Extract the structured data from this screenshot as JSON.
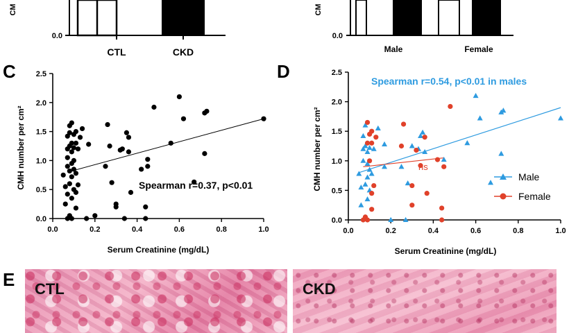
{
  "panel_letters": {
    "c": "C",
    "d": "D",
    "e": "E"
  },
  "top_left": {
    "ylabel_partial": "CM",
    "y_tick": "0.0",
    "categories": [
      "CTL",
      "CKD"
    ]
  },
  "top_right": {
    "ylabel_partial": "CM",
    "y_tick": "0.0",
    "categories": [
      "Male",
      "Female"
    ]
  },
  "panel_c": {
    "ylabel": "CMH number per cm²",
    "xlabel": "Serum Creatinine (mg/dL)",
    "annotation": "Spearman r=0.37, p<0.01"
  },
  "panel_d": {
    "ylabel": "CMH number per cm²",
    "xlabel": "Serum Creatinine (mg/dL)",
    "annotation": "Spearman r=0.54, p<0.01 in males",
    "ns_label": "ns",
    "legend": [
      {
        "label": "Male",
        "color": "#2E9BE0",
        "marker": "triangle"
      },
      {
        "label": "Female",
        "color": "#E0412A",
        "marker": "circle"
      }
    ]
  },
  "panel_e": {
    "labels": [
      "CTL",
      "CKD"
    ]
  },
  "chart_data": [
    {
      "type": "scatter",
      "xlabel": "Serum Creatinine (mg/dL)",
      "ylabel": "CMH number per cm²",
      "xlim": [
        0.0,
        1.0
      ],
      "ylim": [
        0.0,
        2.5
      ],
      "x_ticks": [
        "0.0",
        "0.2",
        "0.4",
        "0.6",
        "0.8",
        "1.0"
      ],
      "y_ticks": [
        "0.0",
        "0.5",
        "1.0",
        "1.5",
        "2.0",
        "2.5"
      ],
      "color": "#000000",
      "points": [
        [
          0.05,
          0.75
        ],
        [
          0.06,
          0.25
        ],
        [
          0.06,
          0.55
        ],
        [
          0.07,
          0.0
        ],
        [
          0.07,
          0.42
        ],
        [
          0.07,
          0.9
        ],
        [
          0.07,
          1.05
        ],
        [
          0.07,
          1.2
        ],
        [
          0.07,
          1.42
        ],
        [
          0.08,
          0.05
        ],
        [
          0.08,
          0.6
        ],
        [
          0.08,
          0.82
        ],
        [
          0.08,
          1.25
        ],
        [
          0.08,
          1.48
        ],
        [
          0.08,
          1.6
        ],
        [
          0.09,
          0.0
        ],
        [
          0.09,
          0.35
        ],
        [
          0.09,
          0.72
        ],
        [
          0.09,
          0.95
        ],
        [
          0.09,
          1.15
        ],
        [
          0.09,
          1.3
        ],
        [
          0.09,
          1.65
        ],
        [
          0.1,
          0.5
        ],
        [
          0.1,
          0.85
        ],
        [
          0.1,
          1.0
        ],
        [
          0.1,
          1.22
        ],
        [
          0.1,
          1.45
        ],
        [
          0.11,
          0.18
        ],
        [
          0.11,
          0.45
        ],
        [
          0.11,
          0.78
        ],
        [
          0.11,
          1.3
        ],
        [
          0.11,
          1.5
        ],
        [
          0.12,
          0.58
        ],
        [
          0.12,
          1.2
        ],
        [
          0.13,
          1.4
        ],
        [
          0.14,
          1.55
        ],
        [
          0.16,
          0.0
        ],
        [
          0.17,
          1.28
        ],
        [
          0.2,
          0.05
        ],
        [
          0.25,
          0.9
        ],
        [
          0.26,
          1.62
        ],
        [
          0.27,
          1.25
        ],
        [
          0.28,
          0.62
        ],
        [
          0.3,
          0.25
        ],
        [
          0.3,
          0.2
        ],
        [
          0.32,
          1.18
        ],
        [
          0.33,
          1.2
        ],
        [
          0.34,
          0.0
        ],
        [
          0.35,
          1.48
        ],
        [
          0.36,
          1.15
        ],
        [
          0.36,
          1.4
        ],
        [
          0.37,
          0.45
        ],
        [
          0.42,
          0.85
        ],
        [
          0.44,
          0.0
        ],
        [
          0.44,
          0.2
        ],
        [
          0.45,
          0.9
        ],
        [
          0.45,
          1.02
        ],
        [
          0.48,
          1.92
        ],
        [
          0.56,
          1.3
        ],
        [
          0.6,
          2.1
        ],
        [
          0.62,
          1.72
        ],
        [
          0.67,
          0.63
        ],
        [
          0.72,
          1.12
        ],
        [
          0.72,
          1.82
        ],
        [
          0.73,
          1.85
        ],
        [
          1.0,
          1.72
        ]
      ],
      "fit_line": [
        [
          0.07,
          0.8
        ],
        [
          1.0,
          1.72
        ]
      ],
      "annotation": "Spearman r=0.37, p<0.01"
    },
    {
      "type": "scatter",
      "xlabel": "Serum Creatinine (mg/dL)",
      "ylabel": "CMH number per cm²",
      "xlim": [
        0.0,
        1.0
      ],
      "ylim": [
        0.0,
        2.5
      ],
      "x_ticks": [
        "0.0",
        "0.2",
        "0.4",
        "0.6",
        "0.8",
        "1.0"
      ],
      "y_ticks": [
        "0.0",
        "0.5",
        "1.0",
        "1.5",
        "2.0",
        "2.5"
      ],
      "legend_position": "right",
      "series": [
        {
          "name": "Male",
          "color": "#2E9BE0",
          "marker": "triangle",
          "points": [
            [
              0.05,
              0.78
            ],
            [
              0.06,
              0.25
            ],
            [
              0.06,
              0.55
            ],
            [
              0.07,
              1.0
            ],
            [
              0.07,
              1.2
            ],
            [
              0.07,
              1.42
            ],
            [
              0.08,
              0.6
            ],
            [
              0.08,
              1.25
            ],
            [
              0.08,
              1.6
            ],
            [
              0.09,
              0.35
            ],
            [
              0.09,
              0.72
            ],
            [
              0.09,
              0.95
            ],
            [
              0.09,
              1.15
            ],
            [
              0.1,
              0.5
            ],
            [
              0.1,
              0.85
            ],
            [
              0.1,
              1.22
            ],
            [
              0.11,
              0.78
            ],
            [
              0.12,
              1.2
            ],
            [
              0.14,
              1.55
            ],
            [
              0.17,
              0.9
            ],
            [
              0.17,
              1.28
            ],
            [
              0.2,
              0.0
            ],
            [
              0.25,
              0.9
            ],
            [
              0.27,
              0.0
            ],
            [
              0.28,
              0.62
            ],
            [
              0.3,
              1.25
            ],
            [
              0.33,
              1.2
            ],
            [
              0.34,
              1.42
            ],
            [
              0.35,
              1.48
            ],
            [
              0.36,
              1.15
            ],
            [
              0.45,
              1.02
            ],
            [
              0.56,
              1.3
            ],
            [
              0.6,
              2.1
            ],
            [
              0.62,
              1.72
            ],
            [
              0.67,
              0.63
            ],
            [
              0.72,
              1.12
            ],
            [
              0.72,
              1.82
            ],
            [
              0.73,
              1.85
            ],
            [
              1.0,
              1.72
            ]
          ],
          "fit_line": [
            [
              0.05,
              0.8
            ],
            [
              1.0,
              1.9
            ]
          ]
        },
        {
          "name": "Female",
          "color": "#E0412A",
          "marker": "circle",
          "points": [
            [
              0.07,
              0.0
            ],
            [
              0.08,
              0.05
            ],
            [
              0.09,
              0.0
            ],
            [
              0.09,
              1.3
            ],
            [
              0.09,
              1.65
            ],
            [
              0.1,
              1.0
            ],
            [
              0.1,
              1.45
            ],
            [
              0.11,
              0.18
            ],
            [
              0.11,
              0.45
            ],
            [
              0.11,
              1.3
            ],
            [
              0.11,
              1.5
            ],
            [
              0.12,
              0.58
            ],
            [
              0.13,
              1.4
            ],
            [
              0.25,
              1.25
            ],
            [
              0.26,
              1.62
            ],
            [
              0.3,
              0.25
            ],
            [
              0.3,
              0.58
            ],
            [
              0.32,
              1.18
            ],
            [
              0.34,
              0.92
            ],
            [
              0.36,
              1.4
            ],
            [
              0.37,
              0.45
            ],
            [
              0.42,
              1.02
            ],
            [
              0.44,
              0.0
            ],
            [
              0.44,
              0.2
            ],
            [
              0.45,
              0.9
            ],
            [
              0.48,
              1.92
            ]
          ],
          "fit_line": [
            [
              0.07,
              0.9
            ],
            [
              0.45,
              1.05
            ]
          ]
        }
      ],
      "annotation": "Spearman r=0.54, p<0.01 in males"
    }
  ]
}
